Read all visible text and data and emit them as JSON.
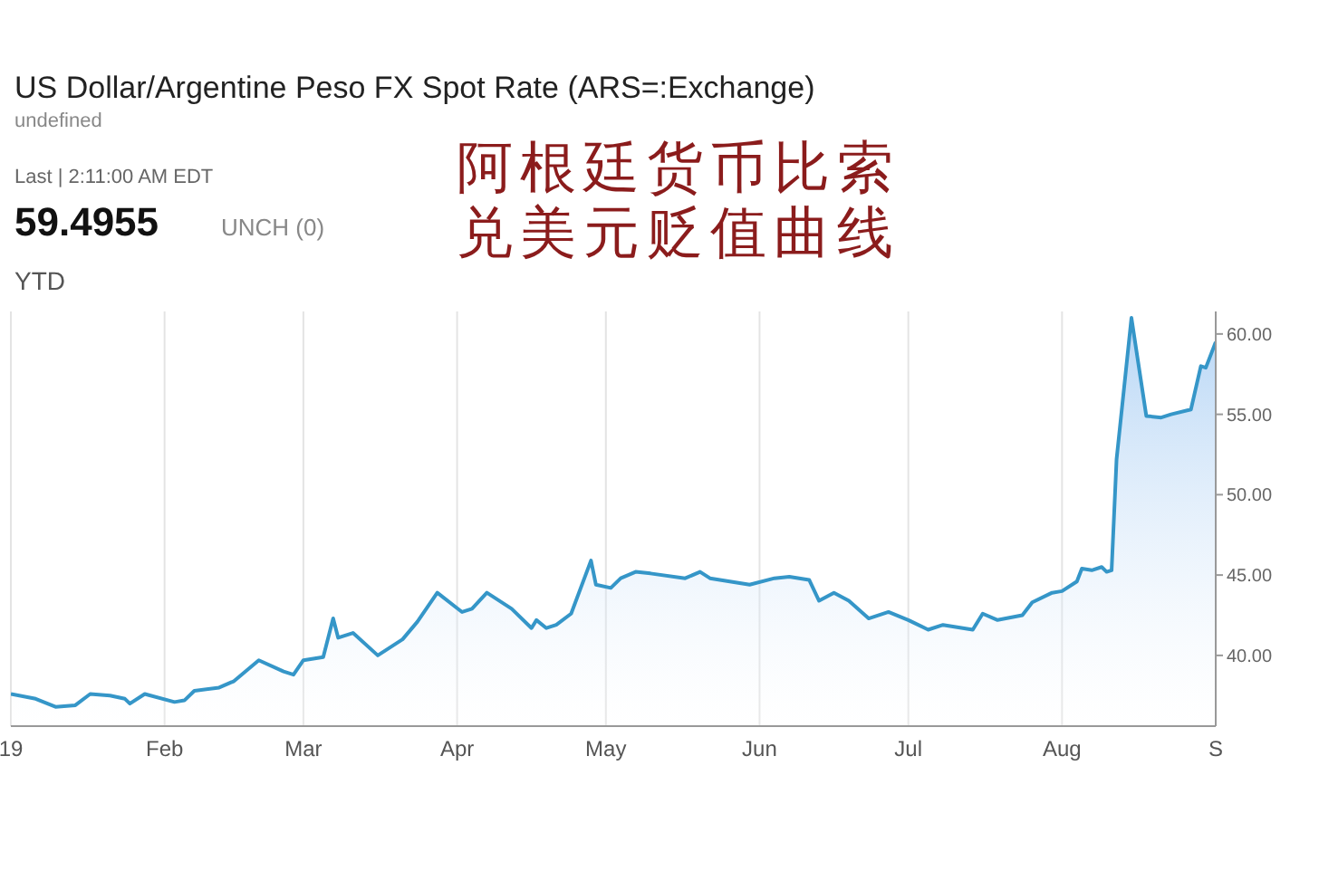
{
  "chart_data": {
    "type": "area",
    "title": "US Dollar/Argentine Peso FX Spot Rate (ARS=:Exchange)",
    "subtitle": "undefined",
    "annotations": [
      "Last | 2:11:00 AM EDT",
      "59.4955",
      "UNCH (0)",
      "YTD",
      "阿根廷货币比索",
      "兑美元贬值曲线"
    ],
    "x": [
      "2019-01-01",
      "2019-01-06",
      "2019-01-10",
      "2019-01-14",
      "2019-01-17",
      "2019-01-21",
      "2019-01-24",
      "2019-01-25",
      "2019-01-28",
      "2019-02-03",
      "2019-02-05",
      "2019-02-07",
      "2019-02-12",
      "2019-02-15",
      "2019-02-20",
      "2019-02-25",
      "2019-02-27",
      "2019-03-01",
      "2019-03-05",
      "2019-03-07",
      "2019-03-08",
      "2019-03-11",
      "2019-03-16",
      "2019-03-21",
      "2019-03-24",
      "2019-03-28",
      "2019-04-02",
      "2019-04-04",
      "2019-04-07",
      "2019-04-12",
      "2019-04-16",
      "2019-04-17",
      "2019-04-19",
      "2019-04-21",
      "2019-04-24",
      "2019-04-28",
      "2019-04-29",
      "2019-05-02",
      "2019-05-04",
      "2019-05-07",
      "2019-05-10",
      "2019-05-17",
      "2019-05-20",
      "2019-05-22",
      "2019-05-30",
      "2019-06-04",
      "2019-06-07",
      "2019-06-11",
      "2019-06-13",
      "2019-06-16",
      "2019-06-19",
      "2019-06-23",
      "2019-06-27",
      "2019-07-01",
      "2019-07-05",
      "2019-07-08",
      "2019-07-14",
      "2019-07-16",
      "2019-07-19",
      "2019-07-24",
      "2019-07-26",
      "2019-07-30",
      "2019-08-01",
      "2019-08-04",
      "2019-08-05",
      "2019-08-07",
      "2019-08-09",
      "2019-08-10",
      "2019-08-11",
      "2019-08-12",
      "2019-08-15",
      "2019-08-18",
      "2019-08-21",
      "2019-08-23",
      "2019-08-27",
      "2019-08-29",
      "2019-08-30",
      "2019-09-01"
    ],
    "series": [
      {
        "color": "#3596c8",
        "values": [
          37.6,
          37.3,
          36.8,
          36.9,
          37.6,
          37.5,
          37.3,
          37.0,
          37.6,
          37.1,
          37.2,
          37.8,
          38.0,
          38.4,
          39.7,
          39.0,
          38.8,
          39.7,
          39.9,
          42.3,
          41.1,
          41.4,
          40.0,
          41.0,
          42.1,
          43.9,
          42.7,
          42.9,
          43.9,
          42.9,
          41.7,
          42.2,
          41.7,
          41.9,
          42.6,
          45.9,
          44.4,
          44.2,
          44.8,
          45.2,
          45.1,
          44.8,
          45.2,
          44.8,
          44.4,
          44.8,
          44.9,
          44.7,
          43.4,
          43.9,
          43.4,
          42.3,
          42.7,
          42.2,
          41.6,
          41.9,
          41.6,
          42.6,
          42.2,
          42.5,
          43.3,
          43.9,
          44.0,
          44.6,
          45.4,
          45.3,
          45.5,
          45.2,
          45.3,
          52.2,
          61.0,
          54.9,
          54.8,
          55.0,
          55.3,
          58.0,
          57.9,
          59.5
        ]
      }
    ],
    "xlim": [
      "2019-01-01",
      "2019-09-01"
    ],
    "xticks": [
      {
        "value": "2019-01-01",
        "label": "19"
      },
      {
        "value": "2019-02-01",
        "label": "Feb"
      },
      {
        "value": "2019-03-01",
        "label": "Mar"
      },
      {
        "value": "2019-04-01",
        "label": "Apr"
      },
      {
        "value": "2019-05-01",
        "label": "May"
      },
      {
        "value": "2019-06-01",
        "label": "Jun"
      },
      {
        "value": "2019-07-01",
        "label": "Jul"
      },
      {
        "value": "2019-08-01",
        "label": "Aug"
      },
      {
        "value": "2019-09-01",
        "label": "S"
      }
    ],
    "ylim": [
      35.6,
      61.4
    ],
    "yticks": [
      {
        "value": 40,
        "label": "40.00"
      },
      {
        "value": 45,
        "label": "45.00"
      },
      {
        "value": 50,
        "label": "50.00"
      },
      {
        "value": 55,
        "label": "55.00"
      },
      {
        "value": 60,
        "label": "60.00"
      }
    ],
    "grid": true
  }
}
